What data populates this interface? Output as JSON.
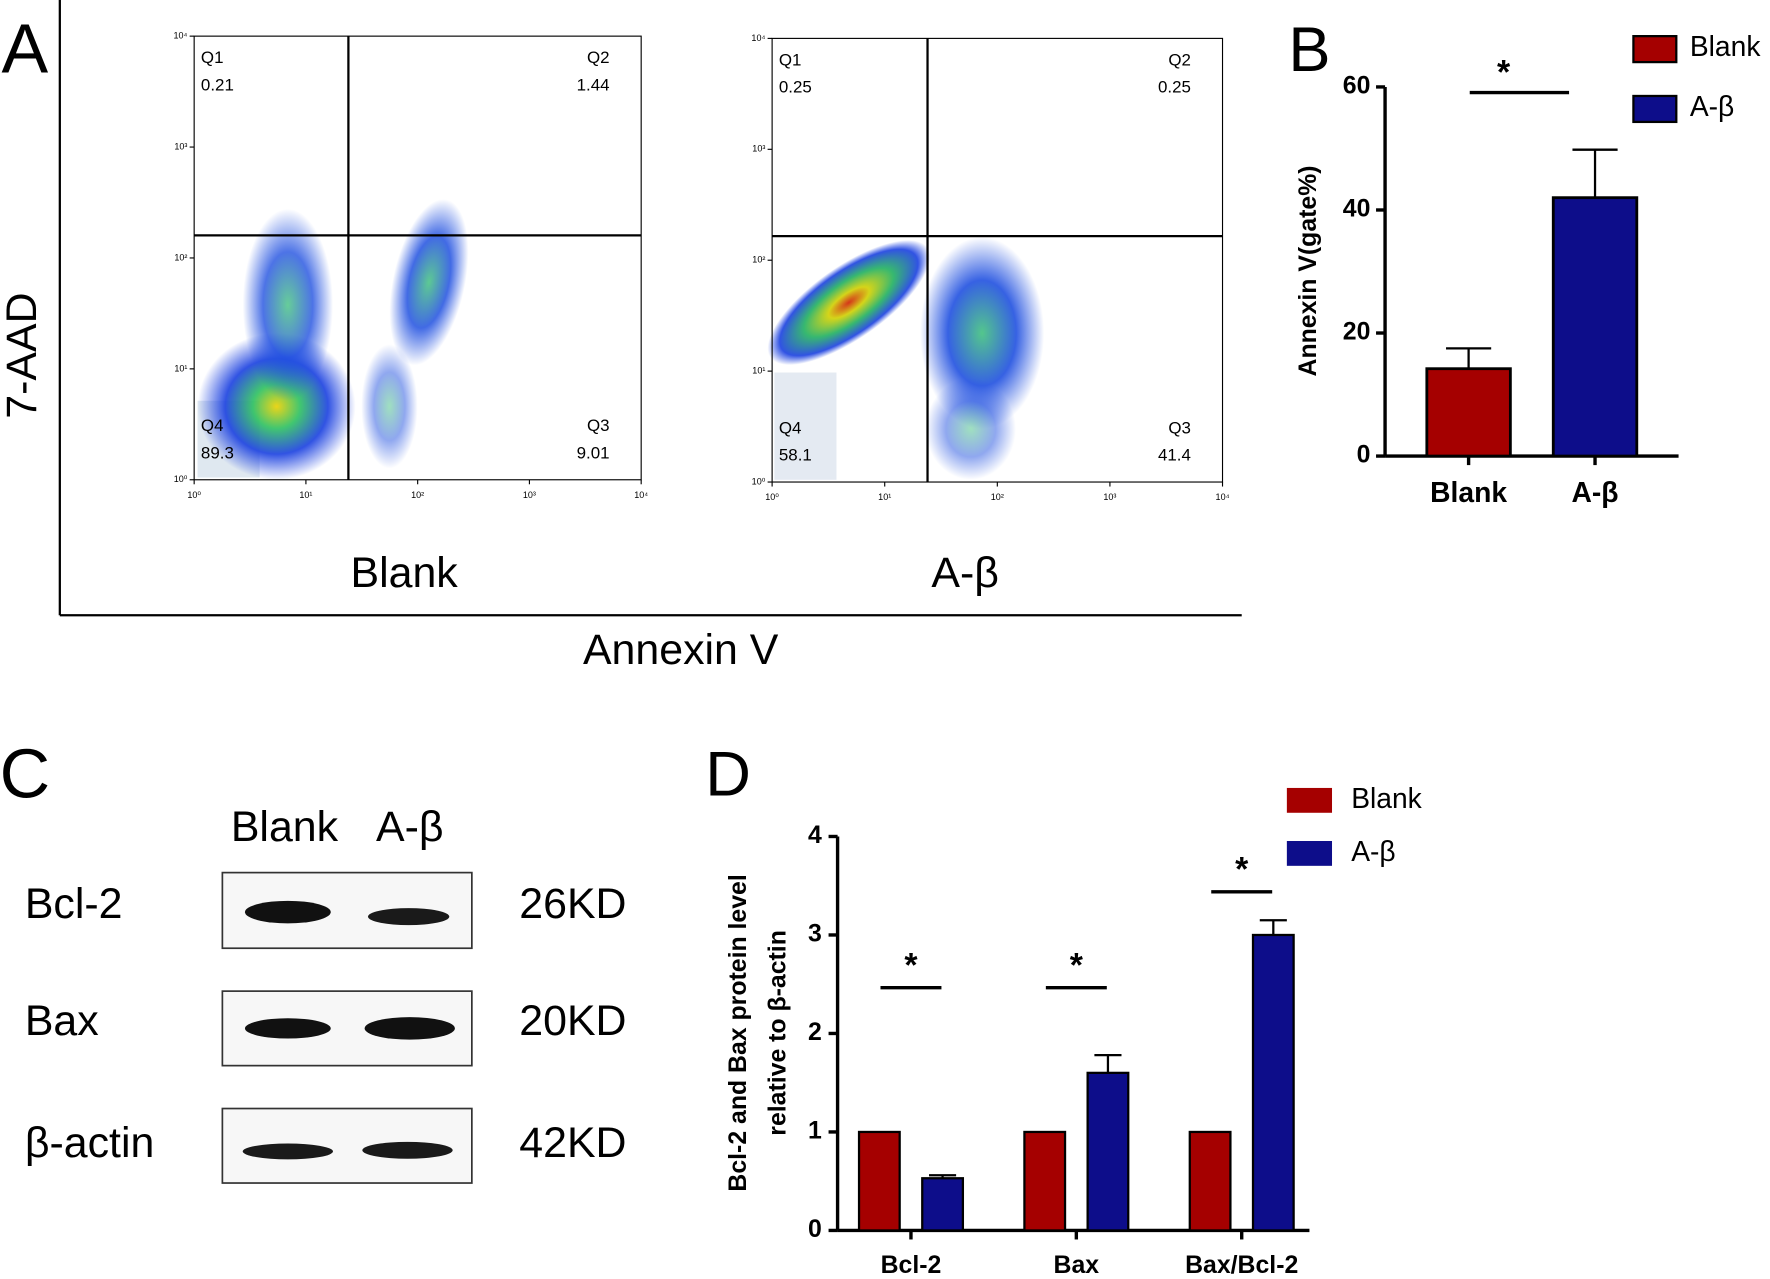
{
  "panel_letters": [
    "A",
    "B",
    "C",
    "D"
  ],
  "panel_a": {
    "x_label": "Annexin V",
    "y_label": "7-AAD"
  },
  "blot": {
    "lanes": [
      "Blank",
      "A-β"
    ],
    "rows": [
      {
        "protein": "Bcl-2",
        "size": "26KD"
      },
      {
        "protein": "Bax",
        "size": "20KD"
      },
      {
        "protein": "β-actin",
        "size": "42KD"
      }
    ]
  },
  "chart_data": [
    {
      "type": "flow",
      "title": "Blank",
      "log": true,
      "xlim": [
        1,
        10000
      ],
      "ylim": [
        1,
        10000
      ],
      "xticks": [
        {
          "value": 1,
          "label": "10⁰"
        },
        {
          "value": 10,
          "label": "10¹"
        },
        {
          "value": 100,
          "label": "10²"
        },
        {
          "value": 1000,
          "label": "10³"
        },
        {
          "value": 10000,
          "label": "10⁴"
        }
      ],
      "yticks": [
        {
          "value": 1,
          "label": "10⁰"
        },
        {
          "value": 10,
          "label": "10¹"
        },
        {
          "value": 100,
          "label": "10²"
        },
        {
          "value": 1000,
          "label": "10³"
        },
        {
          "value": 10000,
          "label": "10⁴"
        }
      ],
      "gate_x": 24,
      "gate_y": 160,
      "quadrants": [
        {
          "name": "Q1",
          "value": 0.21
        },
        {
          "name": "Q2",
          "value": 1.44
        },
        {
          "name": "Q3",
          "value": 9.01
        },
        {
          "name": "Q4",
          "value": 89.3
        }
      ]
    },
    {
      "type": "flow",
      "title": "A-β",
      "log": true,
      "xlim": [
        1,
        10000
      ],
      "ylim": [
        1,
        10000
      ],
      "xticks": [
        {
          "value": 1,
          "label": "10⁰"
        },
        {
          "value": 10,
          "label": "10¹"
        },
        {
          "value": 100,
          "label": "10²"
        },
        {
          "value": 1000,
          "label": "10³"
        },
        {
          "value": 10000,
          "label": "10⁴"
        }
      ],
      "yticks": [
        {
          "value": 1,
          "label": "10⁰"
        },
        {
          "value": 10,
          "label": "10¹"
        },
        {
          "value": 100,
          "label": "10²"
        },
        {
          "value": 1000,
          "label": "10³"
        },
        {
          "value": 10000,
          "label": "10⁴"
        }
      ],
      "gate_x": 24,
      "gate_y": 165,
      "quadrants": [
        {
          "name": "Q1",
          "value": 0.25
        },
        {
          "name": "Q2",
          "value": 0.25
        },
        {
          "name": "Q3",
          "value": 41.4
        },
        {
          "name": "Q4",
          "value": 58.1
        }
      ]
    },
    {
      "type": "bar",
      "y_label": "Annexin V(gate%)",
      "categories": [
        "Blank",
        "A-β"
      ],
      "values": [
        14.2,
        42
      ],
      "errors": [
        3.3,
        7.8
      ],
      "colors": [
        "#a50000",
        "#0d0d8a"
      ],
      "legend": [
        "Blank",
        "A-β"
      ],
      "ylim": [
        0,
        60
      ],
      "yticks": [
        0,
        20,
        40,
        60
      ],
      "annotations": [
        "*"
      ]
    },
    {
      "type": "grouped_bar",
      "y_label": [
        "Bcl-2 and Bax protein level",
        "relative to β-actin"
      ],
      "categories": [
        "Bcl-2",
        "Bax",
        "Bax/Bcl-2"
      ],
      "series": [
        {
          "name": "Blank",
          "color": "#a50000",
          "values": [
            1,
            1,
            1
          ]
        },
        {
          "name": "A-β",
          "color": "#0d0d8a",
          "values": [
            0.53,
            1.6,
            3
          ],
          "errors": [
            0.03,
            0.18,
            0.15
          ]
        }
      ],
      "ylim": [
        0,
        4
      ],
      "yticks": [
        0,
        1,
        2,
        3,
        4
      ],
      "annotations": [
        "*",
        "*",
        "*"
      ]
    }
  ]
}
